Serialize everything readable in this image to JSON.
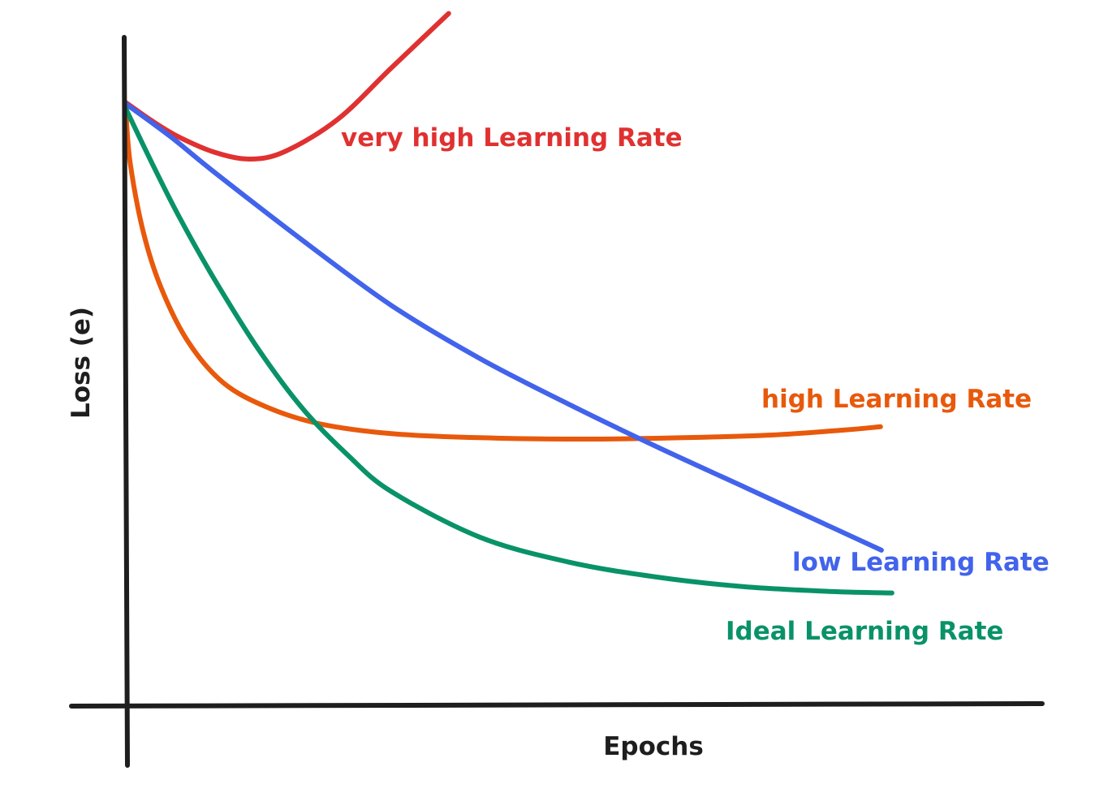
{
  "chart_data": {
    "type": "line",
    "title": "",
    "xlabel": "Epochs",
    "ylabel": "Loss (e)",
    "grid": false,
    "legend": "inline labels at curve ends",
    "xlim": [
      0,
      100
    ],
    "ylim": [
      0,
      100
    ],
    "series": [
      {
        "name": "very high Learning Rate",
        "color": "#e03131",
        "points": [
          [
            0,
            87.5
          ],
          [
            3,
            84.8
          ],
          [
            6,
            82.5
          ],
          [
            10,
            80.3
          ],
          [
            14,
            79.3
          ],
          [
            18,
            80.4
          ],
          [
            24,
            85.1
          ],
          [
            30,
            92.5
          ],
          [
            36.5,
            100.4
          ]
        ]
      },
      {
        "name": "high Learning Rate",
        "color": "#e8590c",
        "points": [
          [
            0,
            86.4
          ],
          [
            0.5,
            78.7
          ],
          [
            2,
            68.6
          ],
          [
            4,
            60.6
          ],
          [
            7,
            52.9
          ],
          [
            11,
            46.9
          ],
          [
            16,
            43.3
          ],
          [
            22,
            40.9
          ],
          [
            30,
            39.5
          ],
          [
            40,
            38.9
          ],
          [
            52,
            38.7
          ],
          [
            63,
            38.9
          ],
          [
            73,
            39.3
          ],
          [
            81,
            40.0
          ],
          [
            85.3,
            40.5
          ]
        ]
      },
      {
        "name": "low Learning Rate",
        "color": "#4263eb",
        "points": [
          [
            0,
            87.3
          ],
          [
            5,
            82.6
          ],
          [
            10,
            77.4
          ],
          [
            20,
            67.5
          ],
          [
            30,
            58.1
          ],
          [
            40,
            50.4
          ],
          [
            50,
            43.8
          ],
          [
            60,
            37.6
          ],
          [
            70,
            31.7
          ],
          [
            80,
            25.8
          ],
          [
            85.4,
            22.6
          ]
        ]
      },
      {
        "name": "Ideal Learning Rate",
        "color": "#099268",
        "points": [
          [
            0,
            86.6
          ],
          [
            3,
            78.6
          ],
          [
            6,
            71.0
          ],
          [
            10,
            61.9
          ],
          [
            15,
            51.7
          ],
          [
            20,
            43.1
          ],
          [
            25,
            36.5
          ],
          [
            30,
            31.1
          ],
          [
            40,
            24.5
          ],
          [
            50,
            20.9
          ],
          [
            60,
            18.7
          ],
          [
            70,
            17.3
          ],
          [
            80,
            16.6
          ],
          [
            86.6,
            16.4
          ]
        ]
      }
    ]
  }
}
